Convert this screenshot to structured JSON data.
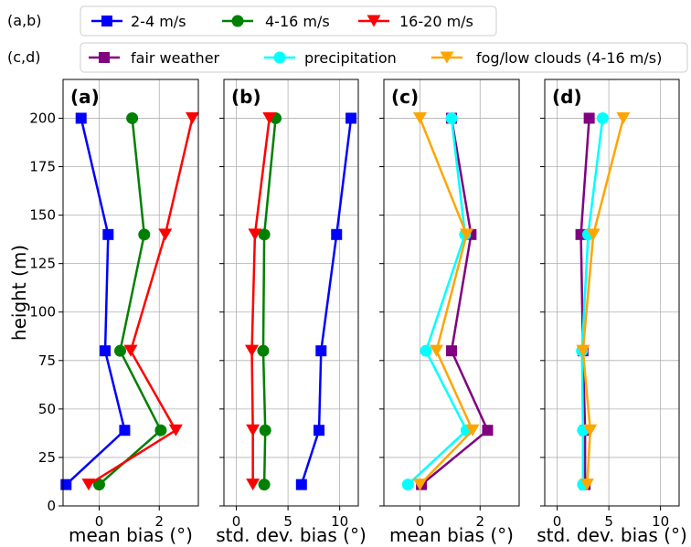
{
  "legends": [
    {
      "tag": "(a,b)",
      "entries": [
        {
          "label": "2-4 m/s",
          "color": "#0000ff",
          "marker": "square"
        },
        {
          "label": "4-16 m/s",
          "color": "#008000",
          "marker": "circle"
        },
        {
          "label": "16-20 m/s",
          "color": "#ff0000",
          "marker": "triangle-down"
        }
      ]
    },
    {
      "tag": "(c,d)",
      "entries": [
        {
          "label": "fair weather",
          "color": "#800080",
          "marker": "square"
        },
        {
          "label": "precipitation",
          "color": "#00ffff",
          "marker": "circle"
        },
        {
          "label": "fog/low clouds  (4-16 m/s)",
          "color": "#ffa500",
          "marker": "triangle-down"
        }
      ]
    }
  ],
  "chart_data": [
    {
      "type": "line",
      "panel": "(a)",
      "xlabel": "mean bias (°)",
      "ylabel": "height (m)",
      "xlim": [
        -1.2,
        3.3
      ],
      "ylim": [
        0,
        220
      ],
      "xticks": [
        0,
        2
      ],
      "yticks": [
        0,
        25,
        50,
        75,
        100,
        125,
        150,
        175,
        200
      ],
      "grid": true,
      "series": [
        {
          "name": "2-4 m/s",
          "color": "#0000ff",
          "marker": "square",
          "points": [
            [
              -0.6,
              200
            ],
            [
              0.3,
              140
            ],
            [
              0.2,
              80
            ],
            [
              0.85,
              39
            ],
            [
              -1.1,
              11
            ]
          ]
        },
        {
          "name": "4-16 m/s",
          "color": "#008000",
          "marker": "circle",
          "points": [
            [
              1.1,
              200
            ],
            [
              1.5,
              140
            ],
            [
              0.7,
              80
            ],
            [
              2.05,
              39
            ],
            [
              0.0,
              11
            ]
          ]
        },
        {
          "name": "16-20 m/s",
          "color": "#ff0000",
          "marker": "triangle-down",
          "points": [
            [
              3.1,
              200
            ],
            [
              2.2,
              140
            ],
            [
              1.05,
              80
            ],
            [
              2.55,
              39
            ],
            [
              -0.35,
              11
            ]
          ]
        }
      ]
    },
    {
      "type": "line",
      "panel": "(b)",
      "xlabel": "std. dev. bias (°)",
      "xlim": [
        -1.2,
        11.8
      ],
      "ylim": [
        0,
        220
      ],
      "xticks": [
        0,
        5,
        10
      ],
      "yticks": [
        0,
        25,
        50,
        75,
        100,
        125,
        150,
        175,
        200
      ],
      "grid": true,
      "series": [
        {
          "name": "2-4 m/s",
          "color": "#0000ff",
          "marker": "square",
          "points": [
            [
              11.1,
              200
            ],
            [
              9.7,
              140
            ],
            [
              8.2,
              80
            ],
            [
              8.0,
              39
            ],
            [
              6.3,
              11
            ]
          ]
        },
        {
          "name": "4-16 m/s",
          "color": "#008000",
          "marker": "circle",
          "points": [
            [
              3.8,
              200
            ],
            [
              2.7,
              140
            ],
            [
              2.6,
              80
            ],
            [
              2.8,
              39
            ],
            [
              2.7,
              11
            ]
          ]
        },
        {
          "name": "16-20 m/s",
          "color": "#ff0000",
          "marker": "triangle-down",
          "points": [
            [
              3.2,
              200
            ],
            [
              1.8,
              140
            ],
            [
              1.5,
              80
            ],
            [
              1.6,
              39
            ],
            [
              1.6,
              11
            ]
          ]
        }
      ]
    },
    {
      "type": "line",
      "panel": "(c)",
      "xlabel": "mean bias (°)",
      "xlim": [
        -1.2,
        3.3
      ],
      "ylim": [
        0,
        220
      ],
      "xticks": [
        0,
        2
      ],
      "yticks": [
        0,
        25,
        50,
        75,
        100,
        125,
        150,
        175,
        200
      ],
      "grid": true,
      "series": [
        {
          "name": "fair weather",
          "color": "#800080",
          "marker": "square",
          "points": [
            [
              1.05,
              200
            ],
            [
              1.7,
              140
            ],
            [
              1.05,
              80
            ],
            [
              2.25,
              39
            ],
            [
              0.05,
              11
            ]
          ]
        },
        {
          "name": "precipitation",
          "color": "#00ffff",
          "marker": "circle",
          "points": [
            [
              1.05,
              200
            ],
            [
              1.5,
              140
            ],
            [
              0.2,
              80
            ],
            [
              1.55,
              39
            ],
            [
              -0.4,
              11
            ]
          ]
        },
        {
          "name": "fog/low clouds  (4-16 m/s)",
          "color": "#ffa500",
          "marker": "triangle-down",
          "points": [
            [
              0.0,
              200
            ],
            [
              1.55,
              140
            ],
            [
              0.55,
              80
            ],
            [
              1.75,
              39
            ],
            [
              0.0,
              11
            ]
          ]
        }
      ]
    },
    {
      "type": "line",
      "panel": "(d)",
      "xlabel": "std. dev. bias (°)",
      "xlim": [
        -1.2,
        11.8
      ],
      "ylim": [
        0,
        220
      ],
      "xticks": [
        0,
        5,
        10
      ],
      "yticks": [
        0,
        25,
        50,
        75,
        100,
        125,
        150,
        175,
        200
      ],
      "grid": true,
      "series": [
        {
          "name": "fair weather",
          "color": "#800080",
          "marker": "square",
          "points": [
            [
              3.1,
              200
            ],
            [
              2.3,
              140
            ],
            [
              2.5,
              80
            ],
            [
              2.7,
              39
            ],
            [
              2.7,
              11
            ]
          ]
        },
        {
          "name": "precipitation",
          "color": "#00ffff",
          "marker": "circle",
          "points": [
            [
              4.4,
              200
            ],
            [
              3.0,
              140
            ],
            [
              2.4,
              80
            ],
            [
              2.5,
              39
            ],
            [
              2.5,
              11
            ]
          ]
        },
        {
          "name": "fog/low clouds  (4-16 m/s)",
          "color": "#ffa500",
          "marker": "triangle-down",
          "points": [
            [
              6.4,
              200
            ],
            [
              3.5,
              140
            ],
            [
              2.5,
              80
            ],
            [
              3.2,
              39
            ],
            [
              2.9,
              11
            ]
          ]
        }
      ]
    }
  ]
}
